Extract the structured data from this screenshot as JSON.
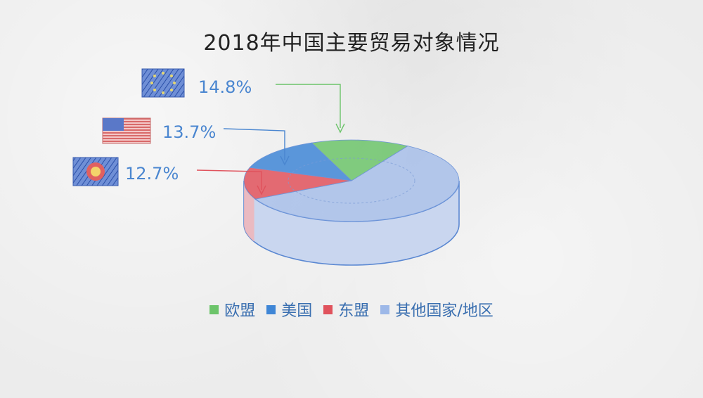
{
  "colors": {
    "eu": "#6cc46a",
    "us": "#3f86d6",
    "asean": "#e0525c",
    "others": "#9db8e8",
    "text": "#4a86d0"
  },
  "chart_data": {
    "type": "pie",
    "title": "2018年中国主要贸易对象情况",
    "slices": [
      {
        "name": "欧盟",
        "value": 14.8,
        "label": "14.8%",
        "icon": "eu-flag-icon"
      },
      {
        "name": "美国",
        "value": 13.7,
        "label": "13.7%",
        "icon": "us-flag-icon"
      },
      {
        "name": "东盟",
        "value": 12.7,
        "label": "12.7%",
        "icon": "asean-flag-icon"
      },
      {
        "name": "其他国家/地区",
        "value": 58.8,
        "label": ""
      }
    ],
    "legend": [
      "欧盟",
      "美国",
      "东盟",
      "其他国家/地区"
    ],
    "legend_position": "bottom"
  }
}
